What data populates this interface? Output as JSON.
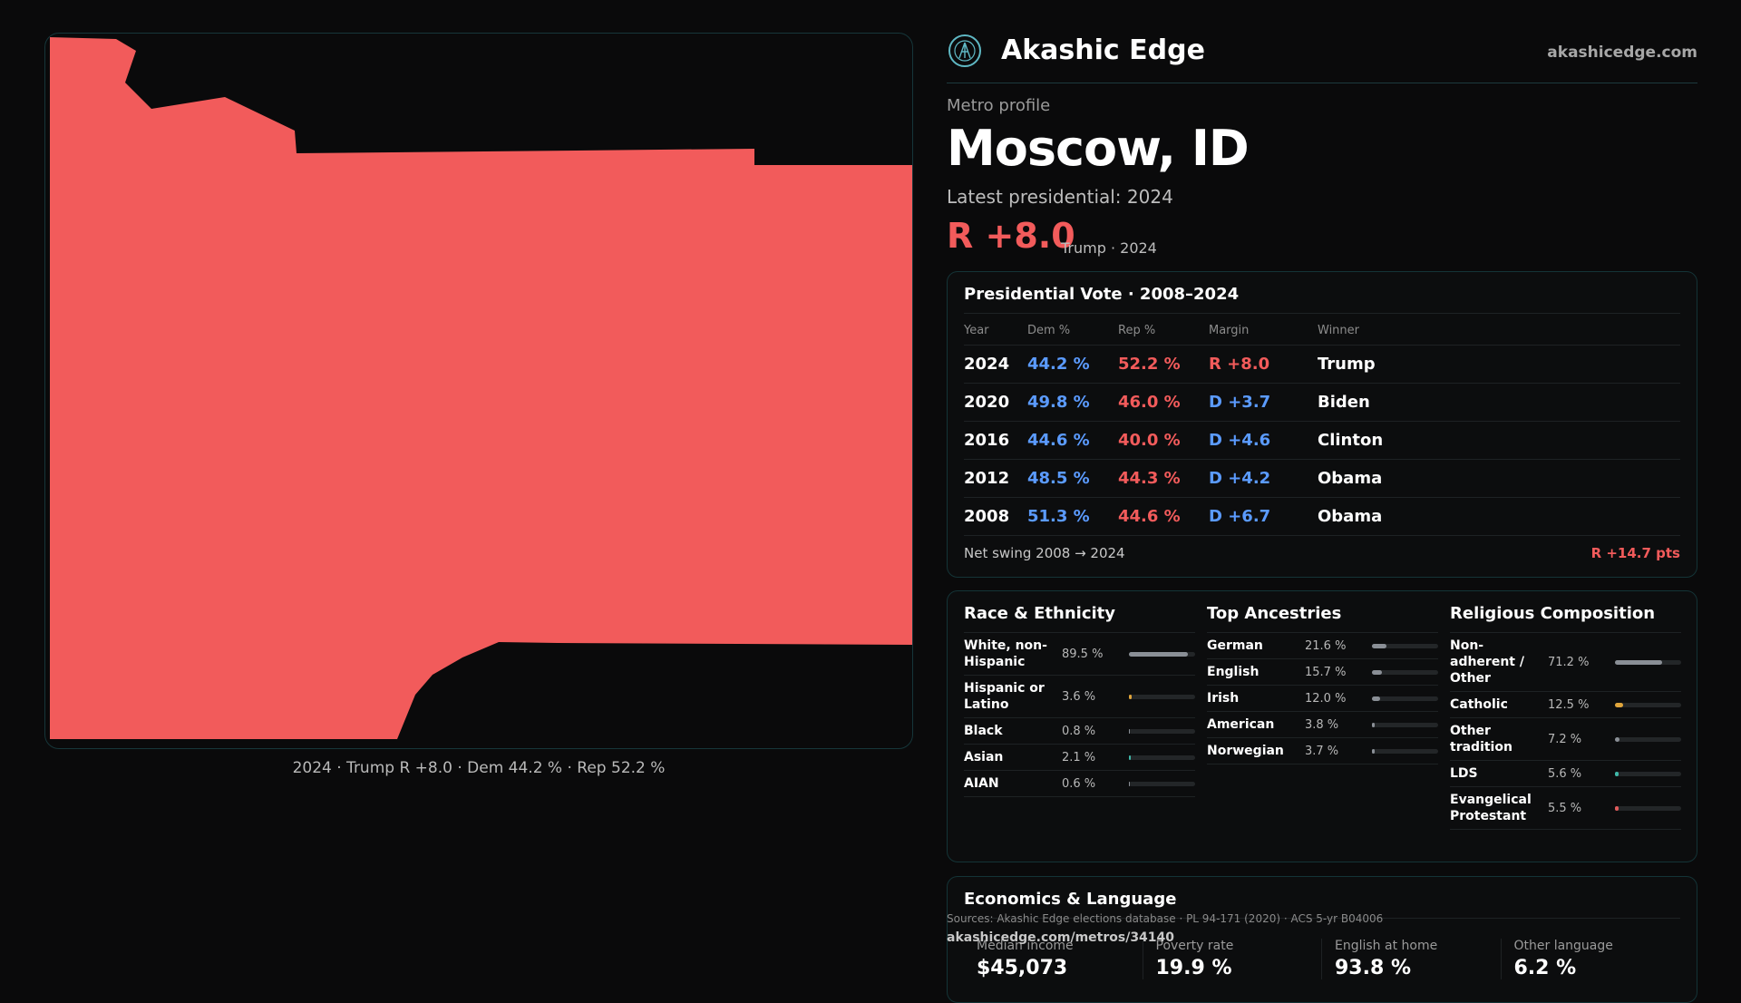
{
  "map": {
    "caption": "2024 · Trump R +8.0 · Dem 44.2 % · Rep 52.2 %",
    "fill_color": "#f25b5b"
  },
  "brand": {
    "name": "Akashic Edge",
    "url": "akashicedge.com",
    "icon": "akashic-logo-icon"
  },
  "header": {
    "eyebrow": "Metro profile",
    "metro": "Moscow, ID",
    "latest": "Latest presidential: 2024",
    "margin": "R +8.0",
    "margin_sub": "Trump · 2024"
  },
  "presidential": {
    "title": "Presidential Vote · 2008–2024",
    "columns": [
      "Year",
      "Dem %",
      "Rep %",
      "Margin",
      "Winner"
    ],
    "rows": [
      {
        "year": "2024",
        "dem": "44.2 %",
        "rep": "52.2 %",
        "margin": "R +8.0",
        "winner": "Trump",
        "party": "R"
      },
      {
        "year": "2020",
        "dem": "49.8 %",
        "rep": "46.0 %",
        "margin": "D +3.7",
        "winner": "Biden",
        "party": "D"
      },
      {
        "year": "2016",
        "dem": "44.6 %",
        "rep": "40.0 %",
        "margin": "D +4.6",
        "winner": "Clinton",
        "party": "D"
      },
      {
        "year": "2012",
        "dem": "48.5 %",
        "rep": "44.3 %",
        "margin": "D +4.2",
        "winner": "Obama",
        "party": "D"
      },
      {
        "year": "2008",
        "dem": "51.3 %",
        "rep": "44.6 %",
        "margin": "D +6.7",
        "winner": "Obama",
        "party": "D"
      }
    ],
    "swing_label": "Net swing 2008 → 2024",
    "swing_value": "R +14.7 pts",
    "colors": {
      "dem": "#5b9bff",
      "rep": "#f25b5b"
    }
  },
  "race": {
    "title": "Race & Ethnicity",
    "rows": [
      {
        "label": "White, non-Hispanic",
        "pct": "89.5 %",
        "value": 89.5,
        "color": "#8a8f96"
      },
      {
        "label": "Hispanic or Latino",
        "pct": "3.6 %",
        "value": 3.6,
        "color": "#e0a53b"
      },
      {
        "label": "Black",
        "pct": "0.8 %",
        "value": 0.8,
        "color": "#8a8f96"
      },
      {
        "label": "Asian",
        "pct": "2.1 %",
        "value": 2.1,
        "color": "#3fb8a8"
      },
      {
        "label": "AIAN",
        "pct": "0.6 %",
        "value": 0.6,
        "color": "#8a8f96"
      }
    ]
  },
  "ancestry": {
    "title": "Top Ancestries",
    "rows": [
      {
        "label": "German",
        "pct": "21.6 %",
        "value": 21.6,
        "color": "#8a8f96"
      },
      {
        "label": "English",
        "pct": "15.7 %",
        "value": 15.7,
        "color": "#8a8f96"
      },
      {
        "label": "Irish",
        "pct": "12.0 %",
        "value": 12.0,
        "color": "#8a8f96"
      },
      {
        "label": "American",
        "pct": "3.8 %",
        "value": 3.8,
        "color": "#8a8f96"
      },
      {
        "label": "Norwegian",
        "pct": "3.7 %",
        "value": 3.7,
        "color": "#8a8f96"
      }
    ]
  },
  "religion": {
    "title": "Religious Composition",
    "rows": [
      {
        "label": "Non-adherent / Other",
        "pct": "71.2 %",
        "value": 71.2,
        "color": "#8a8f96"
      },
      {
        "label": "Catholic",
        "pct": "12.5 %",
        "value": 12.5,
        "color": "#e0a53b"
      },
      {
        "label": "Other tradition",
        "pct": "7.2 %",
        "value": 7.2,
        "color": "#8a8f96"
      },
      {
        "label": "LDS",
        "pct": "5.6 %",
        "value": 5.6,
        "color": "#3fb8a8"
      },
      {
        "label": "Evangelical Protestant",
        "pct": "5.5 %",
        "value": 5.5,
        "color": "#e05b5b"
      }
    ]
  },
  "economics": {
    "title": "Economics & Language",
    "cells": [
      {
        "label": "Median income",
        "value": "$45,073"
      },
      {
        "label": "Poverty rate",
        "value": "19.9 %"
      },
      {
        "label": "English at home",
        "value": "93.8 %"
      },
      {
        "label": "Other language",
        "value": "6.2 %"
      }
    ]
  },
  "footer": {
    "sources": "Sources: Akashic Edge elections database · PL 94-171 (2020) · ACS 5-yr B04006",
    "permalink": "akashicedge.com/metros/34140"
  }
}
